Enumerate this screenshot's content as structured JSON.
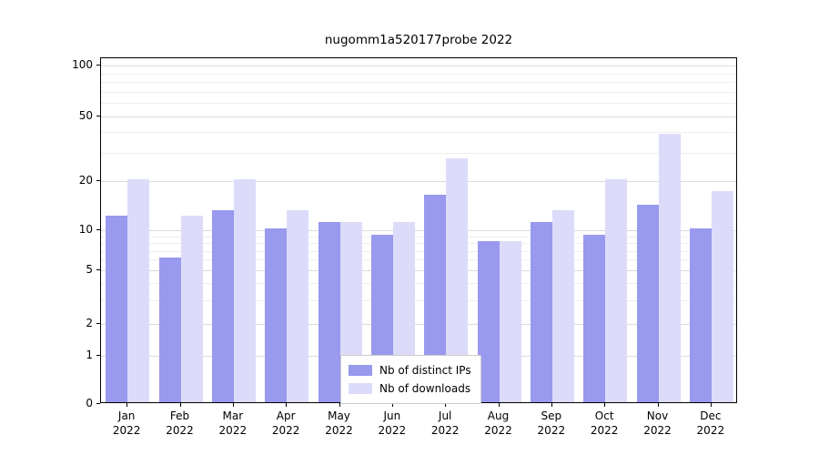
{
  "chart_data": {
    "type": "bar",
    "title": "nugomm1a520177probe 2022",
    "categories": [
      "Jan",
      "Feb",
      "Mar",
      "Apr",
      "May",
      "Jun",
      "Jul",
      "Aug",
      "Sep",
      "Oct",
      "Nov",
      "Dec"
    ],
    "category_year": "2022",
    "series": [
      {
        "name": "Nb of distinct IPs",
        "color": "#9999ee",
        "values": [
          12,
          6,
          13,
          10,
          11,
          9,
          16,
          8,
          11,
          9,
          14,
          10
        ]
      },
      {
        "name": "Nb of downloads",
        "color": "#dcdcfa",
        "values": [
          20,
          12,
          20,
          13,
          11,
          11,
          27,
          8,
          13,
          20,
          38,
          17
        ]
      }
    ],
    "yaxis": {
      "scale": "symlog",
      "ticks": [
        0,
        1,
        2,
        5,
        10,
        20,
        50,
        100
      ],
      "minor_ticks": [
        3,
        4,
        6,
        7,
        8,
        9,
        30,
        40,
        60,
        70,
        80,
        90
      ],
      "ylim": [
        0,
        115
      ]
    },
    "legend_position": "lower center",
    "grid": true,
    "colors": {
      "grid_major": "#dcdcdc",
      "grid_minor": "#efefef",
      "axis": "#000000",
      "background": "#ffffff"
    }
  }
}
